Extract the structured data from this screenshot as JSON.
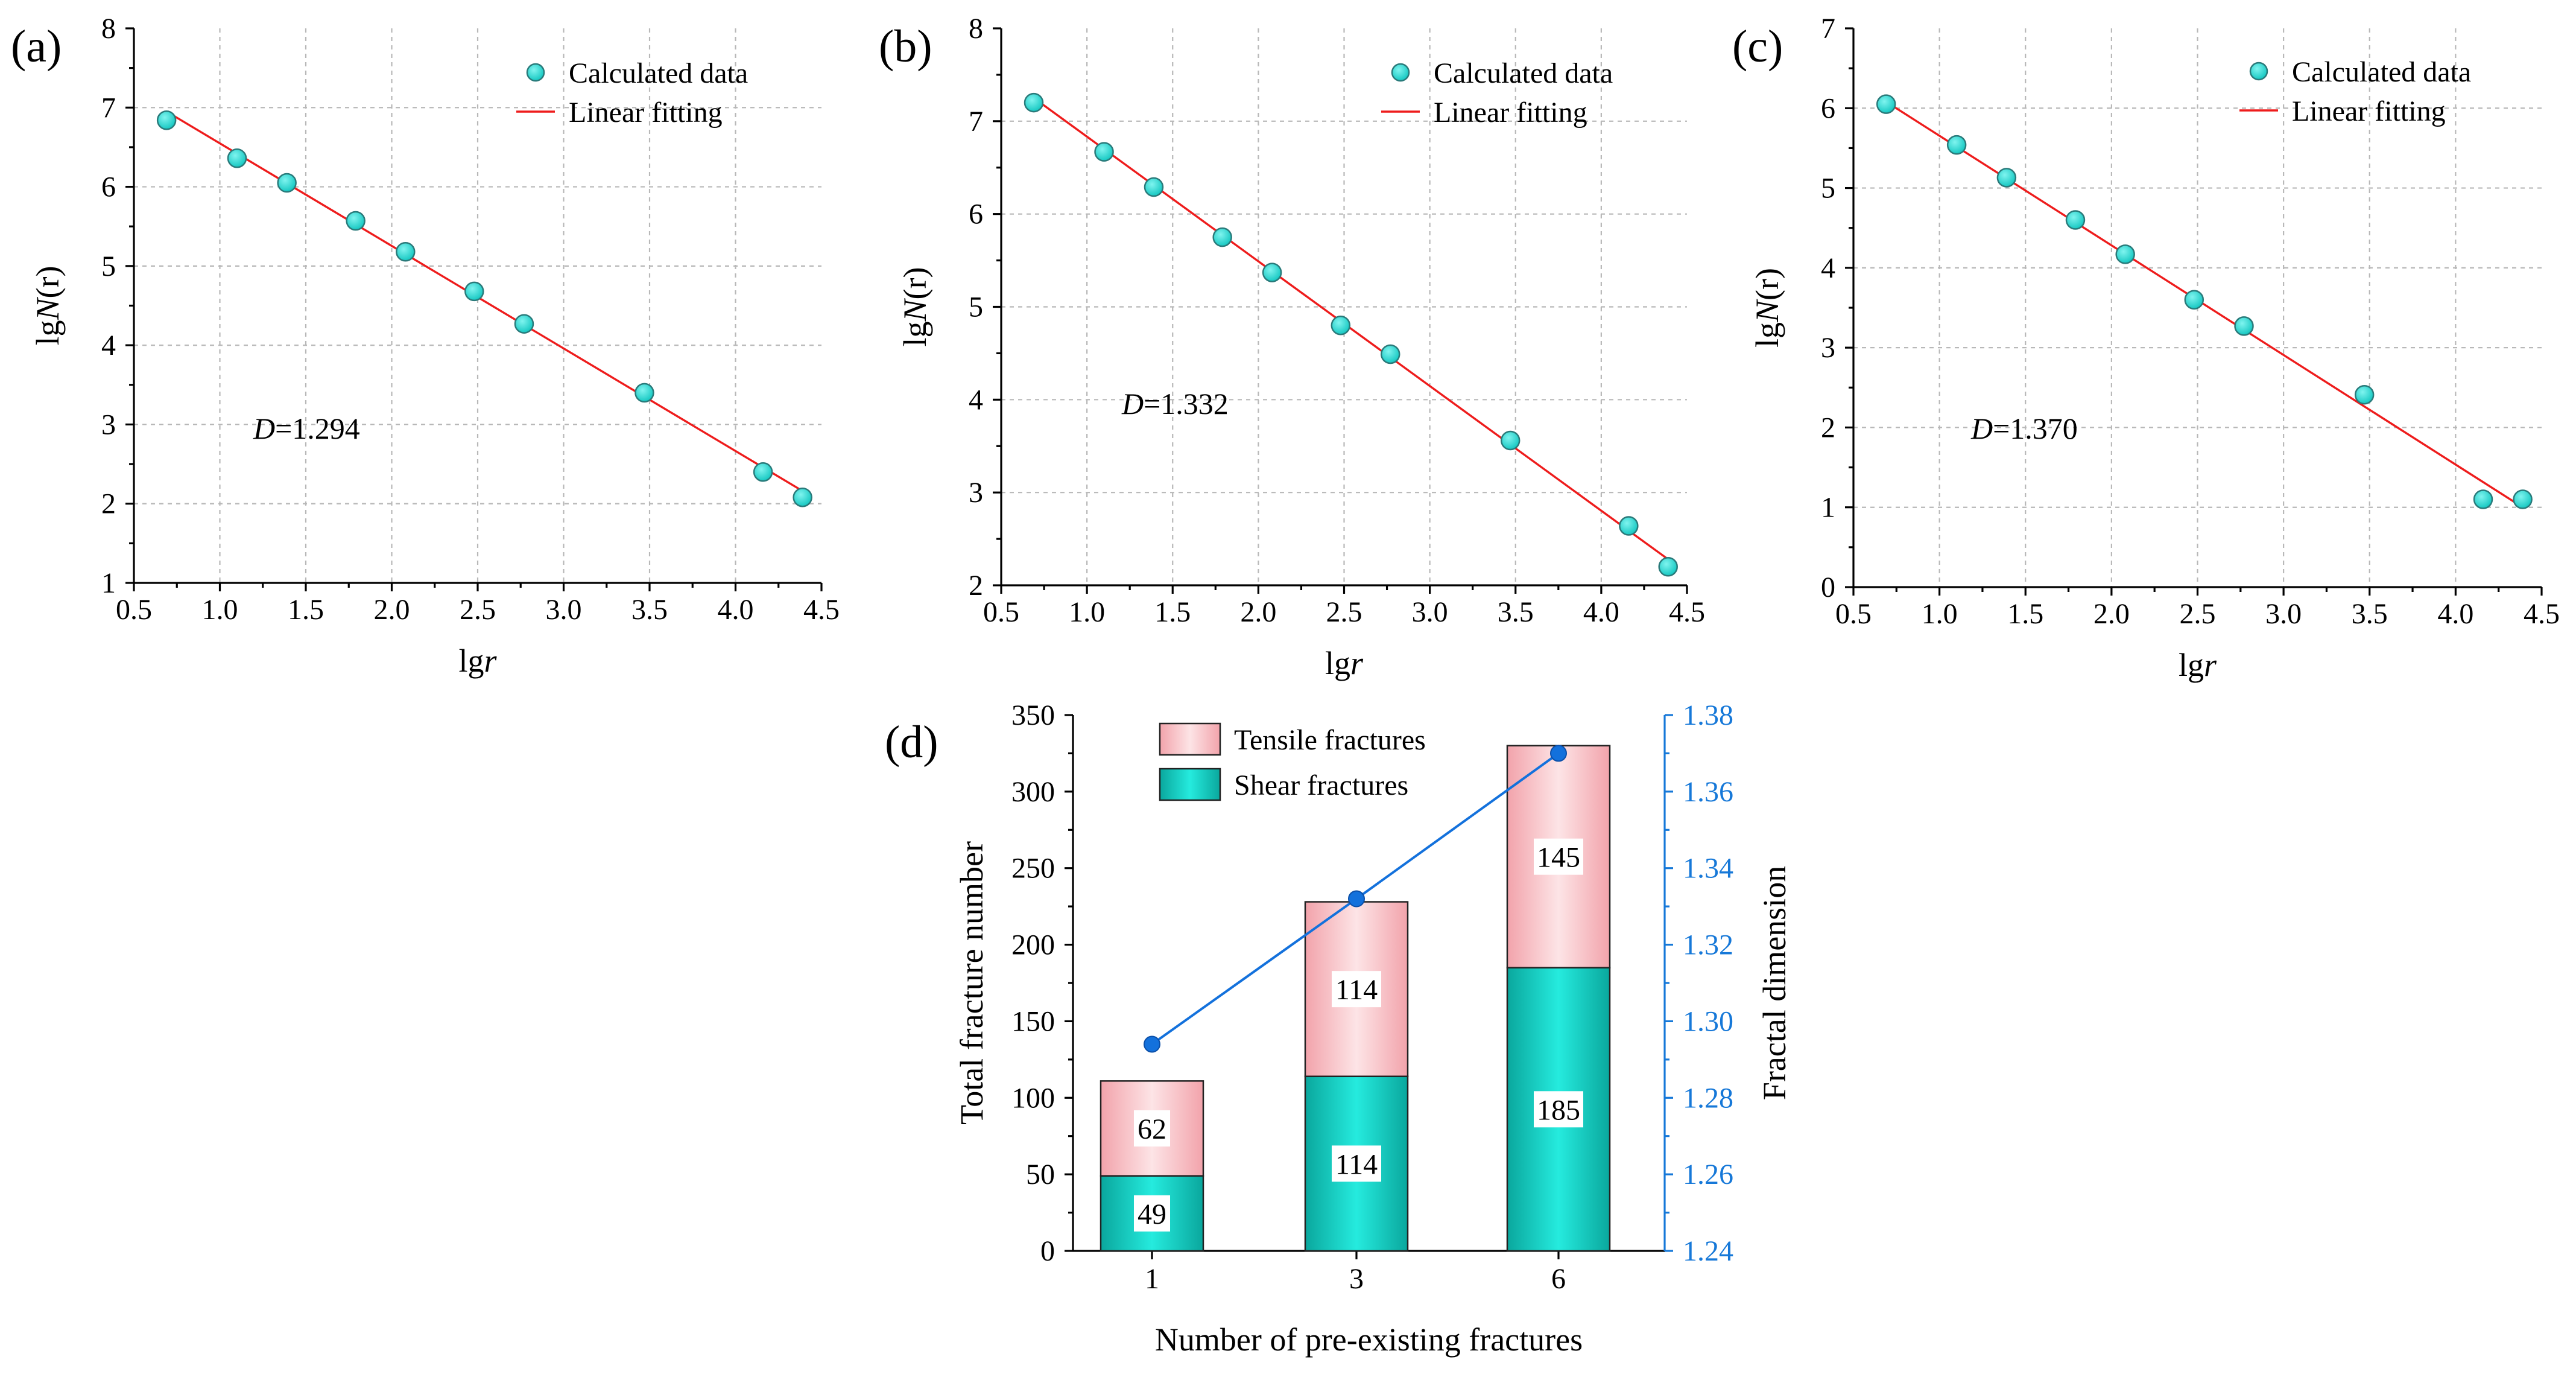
{
  "chart_data": [
    {
      "panel": "(a)",
      "type": "scatter",
      "xlabel_base": "lg",
      "xlabel_var": "r",
      "ylabel_base": "lg",
      "ylabel_var": "N",
      "ylabel_arg": "(r)",
      "xlim": [
        0.5,
        4.5
      ],
      "ylim": [
        1,
        8
      ],
      "xticks": [
        "0.5",
        "1.0",
        "1.5",
        "2.0",
        "2.5",
        "3.0",
        "3.5",
        "4.0",
        "4.5"
      ],
      "yticks": [
        "1",
        "2",
        "3",
        "4",
        "5",
        "6",
        "7",
        "8"
      ],
      "grid": true,
      "legend": [
        "Calculated data",
        "Linear fitting"
      ],
      "annotation_var": "D",
      "annotation_value": "=1.294",
      "series": [
        {
          "name": "Calculated data",
          "x": [
            0.69,
            1.1,
            1.39,
            1.79,
            2.08,
            2.48,
            2.77,
            3.47,
            4.16,
            4.39
          ],
          "y": [
            6.84,
            6.36,
            6.05,
            5.57,
            5.18,
            4.68,
            4.27,
            3.4,
            2.4,
            2.08
          ]
        },
        {
          "name": "Linear fitting",
          "x": [
            0.69,
            4.39
          ],
          "y": [
            6.95,
            2.16
          ]
        }
      ],
      "colors": {
        "marker": "#1ed8d3",
        "marker_edge": "#2a7a7a",
        "line": "#ee1c1c"
      }
    },
    {
      "panel": "(b)",
      "type": "scatter",
      "xlabel_base": "lg",
      "xlabel_var": "r",
      "ylabel_base": "lg",
      "ylabel_var": "N",
      "ylabel_arg": "(r)",
      "xlim": [
        0.5,
        4.5
      ],
      "ylim": [
        2,
        8
      ],
      "xticks": [
        "0.5",
        "1.0",
        "1.5",
        "2.0",
        "2.5",
        "3.0",
        "3.5",
        "4.0",
        "4.5"
      ],
      "yticks": [
        "2",
        "3",
        "4",
        "5",
        "6",
        "7",
        "8"
      ],
      "grid": true,
      "legend": [
        "Calculated data",
        "Linear fitting"
      ],
      "annotation_var": "D",
      "annotation_value": "=1.332",
      "series": [
        {
          "name": "Calculated data",
          "x": [
            0.69,
            1.1,
            1.39,
            1.79,
            2.08,
            2.48,
            2.77,
            3.47,
            4.16,
            4.39
          ],
          "y": [
            7.2,
            6.67,
            6.29,
            5.75,
            5.37,
            4.8,
            4.49,
            3.56,
            2.64,
            2.2
          ]
        },
        {
          "name": "Linear fitting",
          "x": [
            0.69,
            4.39
          ],
          "y": [
            7.25,
            2.28
          ]
        }
      ],
      "colors": {
        "marker": "#1ed8d3",
        "marker_edge": "#2a7a7a",
        "line": "#ee1c1c"
      }
    },
    {
      "panel": "(c)",
      "type": "scatter",
      "xlabel_base": "lg",
      "xlabel_var": "r",
      "ylabel_base": "lg",
      "ylabel_var": "N",
      "ylabel_arg": "(r)",
      "xlim": [
        0.5,
        4.5
      ],
      "ylim": [
        0,
        7
      ],
      "xticks": [
        "0.5",
        "1.0",
        "1.5",
        "2.0",
        "2.5",
        "3.0",
        "3.5",
        "4.0",
        "4.5"
      ],
      "yticks": [
        "0",
        "1",
        "2",
        "3",
        "4",
        "5",
        "6",
        "7"
      ],
      "grid": true,
      "legend": [
        "Calculated data",
        "Linear fitting"
      ],
      "annotation_var": "D",
      "annotation_value": "=1.370",
      "series": [
        {
          "name": "Calculated data",
          "x": [
            0.69,
            1.1,
            1.39,
            1.79,
            2.08,
            2.48,
            2.77,
            3.47,
            4.16,
            4.39
          ],
          "y": [
            6.05,
            5.54,
            5.13,
            4.6,
            4.17,
            3.6,
            3.27,
            2.41,
            1.1,
            1.1
          ]
        },
        {
          "name": "Linear fitting",
          "x": [
            0.69,
            4.39
          ],
          "y": [
            6.08,
            1.0
          ]
        }
      ],
      "colors": {
        "marker": "#1ed8d3",
        "marker_edge": "#2a7a7a",
        "line": "#ee1c1c"
      }
    },
    {
      "panel": "(d)",
      "type": "bar",
      "stacked": true,
      "categories": [
        "1",
        "3",
        "6"
      ],
      "xlabel": "Number of pre-existing fractures",
      "ylabel": "Total fracture number",
      "y2label": "Fractal dimension",
      "ylim": [
        0,
        350
      ],
      "y2lim": [
        1.24,
        1.38
      ],
      "yticks": [
        "0",
        "50",
        "100",
        "150",
        "200",
        "250",
        "300",
        "350"
      ],
      "y2ticks": [
        "1.24",
        "1.26",
        "1.28",
        "1.30",
        "1.32",
        "1.34",
        "1.36",
        "1.38"
      ],
      "grid": false,
      "legend": [
        "Tensile fractures",
        "Shear fractures"
      ],
      "series": [
        {
          "name": "Shear fractures",
          "values": [
            49,
            114,
            185
          ],
          "labels": [
            "49",
            "114",
            "185"
          ]
        },
        {
          "name": "Tensile fractures",
          "values": [
            62,
            114,
            145
          ],
          "labels": [
            "62",
            "114",
            "145"
          ]
        }
      ],
      "line_series": {
        "name": "Fractal dimension",
        "axis": "right",
        "values": [
          1.294,
          1.332,
          1.37
        ]
      },
      "colors": {
        "shear": "#0fd6cb",
        "tensile": "#f8c4c9",
        "tensile_edge": "#e0737d",
        "line": "#1371dc",
        "right_axis": "#1678d8"
      }
    }
  ]
}
